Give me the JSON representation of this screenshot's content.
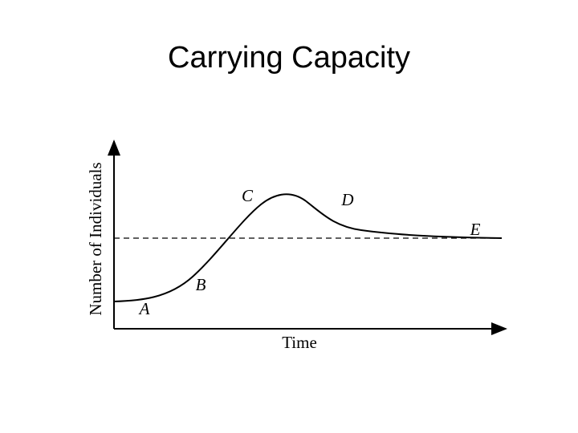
{
  "title": "Carrying Capacity",
  "axes": {
    "x_label": "Time",
    "y_label": "Number of Individuals"
  },
  "points": [
    {
      "label": "A"
    },
    {
      "label": "B"
    },
    {
      "label": "C"
    },
    {
      "label": "D"
    },
    {
      "label": "E"
    }
  ]
}
